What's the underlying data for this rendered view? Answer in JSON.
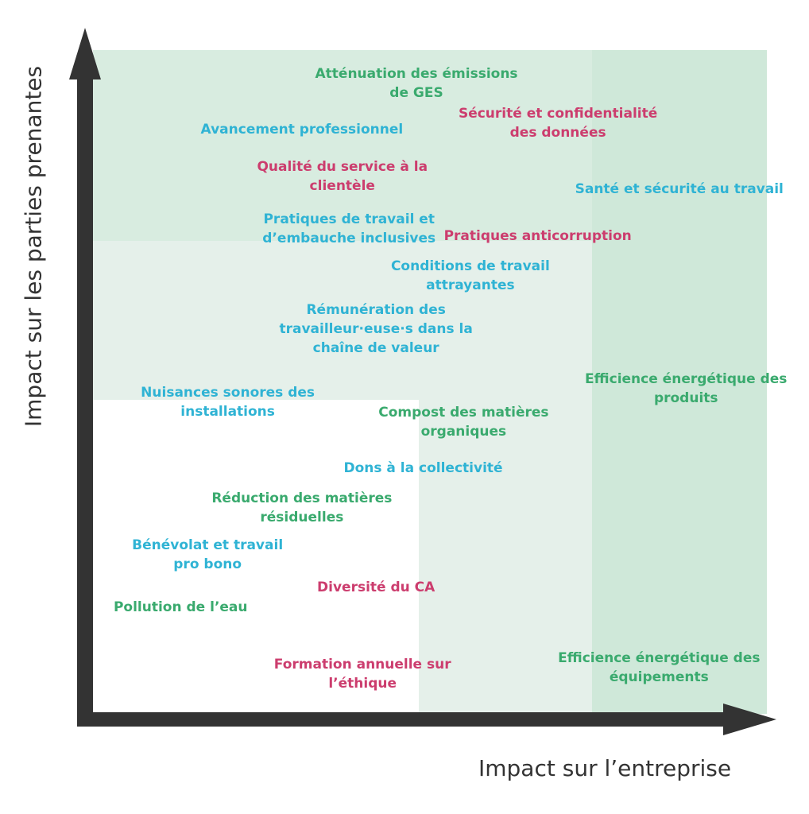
{
  "chart_data": {
    "type": "scatter",
    "title": "",
    "xlabel": "Impact sur l’entreprise",
    "ylabel": "Impact sur les parties prenantes",
    "grid": false,
    "legend": "none",
    "colors": {
      "green": "#3aaa6e",
      "blue": "#2fb3d4",
      "pink": "#cc3d6e",
      "zone_light": "#e5f0ea",
      "zone_mid": "#d8ece0",
      "zone_dark": "#cfe8d9",
      "axis": "#333333"
    },
    "zones": [
      {
        "name": "high",
        "level": 3
      },
      {
        "name": "medium",
        "level": 2
      },
      {
        "name": "low",
        "level": 1
      }
    ],
    "points": [
      {
        "lines": [
          "Atténuation des émissions",
          "de GES"
        ],
        "x": 0.48,
        "y": 0.95,
        "color": "green"
      },
      {
        "lines": [
          "Sécurité et confidentialité",
          "des données"
        ],
        "x": 0.69,
        "y": 0.89,
        "color": "pink"
      },
      {
        "lines": [
          "Avancement professionnel"
        ],
        "x": 0.31,
        "y": 0.88,
        "color": "blue"
      },
      {
        "lines": [
          "Qualité du service à la",
          "clientèle"
        ],
        "x": 0.37,
        "y": 0.81,
        "color": "pink"
      },
      {
        "lines": [
          "Santé et sécurité au travail"
        ],
        "x": 0.87,
        "y": 0.79,
        "color": "blue"
      },
      {
        "lines": [
          "Pratiques de travail et",
          "d’embauche inclusives"
        ],
        "x": 0.38,
        "y": 0.73,
        "color": "blue"
      },
      {
        "lines": [
          "Pratiques anticorruption"
        ],
        "x": 0.66,
        "y": 0.72,
        "color": "pink"
      },
      {
        "lines": [
          "Conditions de travail",
          "attrayantes"
        ],
        "x": 0.56,
        "y": 0.66,
        "color": "blue"
      },
      {
        "lines": [
          "Rémunération des",
          "travailleur·euse·s dans la",
          "chaîne de valeur"
        ],
        "x": 0.42,
        "y": 0.58,
        "color": "blue"
      },
      {
        "lines": [
          "Efficience énergétique des",
          "produits"
        ],
        "x": 0.88,
        "y": 0.49,
        "color": "green"
      },
      {
        "lines": [
          "Nuisances sonores des",
          "installations"
        ],
        "x": 0.2,
        "y": 0.47,
        "color": "blue"
      },
      {
        "lines": [
          "Compost des matières",
          "organiques"
        ],
        "x": 0.55,
        "y": 0.44,
        "color": "green"
      },
      {
        "lines": [
          "Dons à la collectivité"
        ],
        "x": 0.49,
        "y": 0.37,
        "color": "blue"
      },
      {
        "lines": [
          "Réduction des matières",
          "résiduelles"
        ],
        "x": 0.31,
        "y": 0.31,
        "color": "green"
      },
      {
        "lines": [
          "Bénévolat et travail",
          "pro bono"
        ],
        "x": 0.17,
        "y": 0.24,
        "color": "blue"
      },
      {
        "lines": [
          "Diversité du CA"
        ],
        "x": 0.42,
        "y": 0.19,
        "color": "pink"
      },
      {
        "lines": [
          "Pollution de l’eau"
        ],
        "x": 0.13,
        "y": 0.16,
        "color": "green"
      },
      {
        "lines": [
          "Formation annuelle sur",
          "l’éthique"
        ],
        "x": 0.4,
        "y": 0.06,
        "color": "pink"
      },
      {
        "lines": [
          "Efficience énergétique des",
          "équipements"
        ],
        "x": 0.84,
        "y": 0.07,
        "color": "green"
      }
    ]
  }
}
